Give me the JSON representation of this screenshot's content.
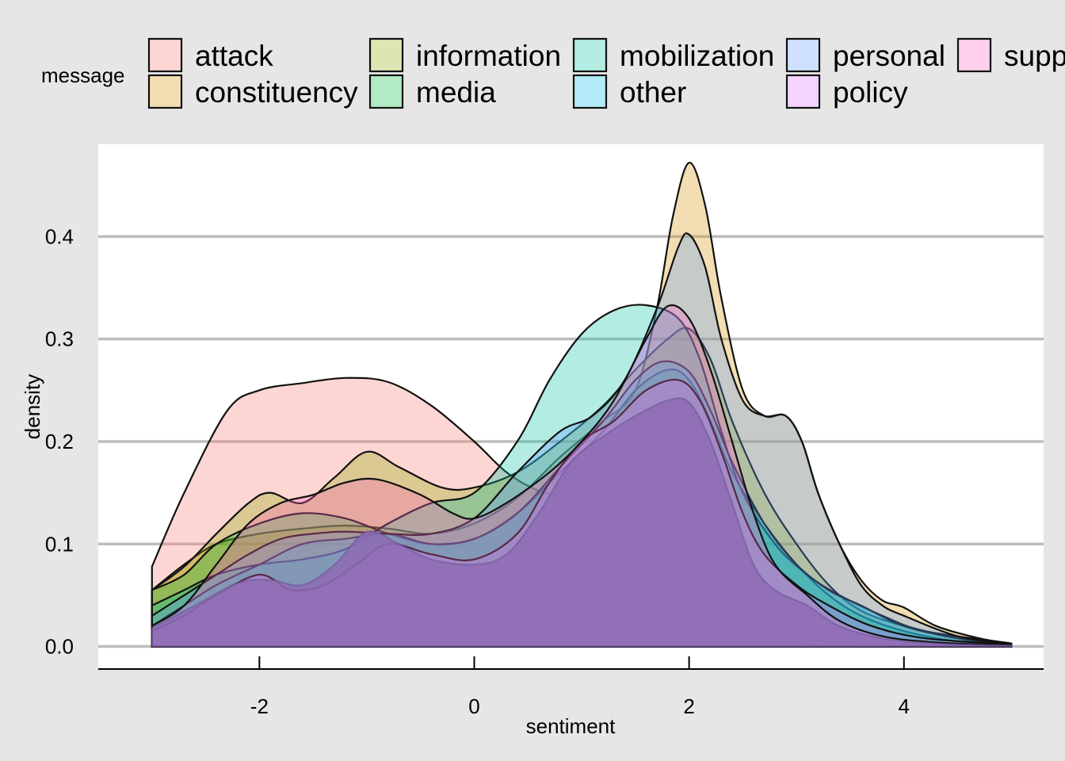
{
  "chart_data": {
    "type": "area",
    "title": "",
    "xlabel": "sentiment",
    "ylabel": "density",
    "xlim": [
      -3.5,
      5.3
    ],
    "ylim": [
      -0.022,
      0.49
    ],
    "x_ticks": [
      -2,
      0,
      2,
      4
    ],
    "x_tick_labels": [
      "-2",
      "0",
      "2",
      "4"
    ],
    "y_ticks": [
      0.0,
      0.1,
      0.2,
      0.3,
      0.4
    ],
    "y_tick_labels": [
      "0.0",
      "0.1",
      "0.2",
      "0.3",
      "0.4"
    ],
    "grid": "horizontal",
    "legend": {
      "title": "message",
      "placement": "top",
      "columns": [
        [
          "attack",
          "constituency"
        ],
        [
          "information",
          "media"
        ],
        [
          "mobilization",
          "other"
        ],
        [
          "personal",
          "policy"
        ],
        [
          "supp"
        ]
      ]
    },
    "series": [
      {
        "name": "attack",
        "color": "#F8766D",
        "points": [
          [
            -3,
            0.078
          ],
          [
            -2.7,
            0.15
          ],
          [
            -2.3,
            0.23
          ],
          [
            -2,
            0.25
          ],
          [
            -1.6,
            0.257
          ],
          [
            -1.2,
            0.262
          ],
          [
            -0.8,
            0.258
          ],
          [
            -0.4,
            0.235
          ],
          [
            0,
            0.2
          ],
          [
            0.3,
            0.17
          ],
          [
            0.6,
            0.152
          ],
          [
            1,
            0.14
          ],
          [
            1.3,
            0.125
          ],
          [
            1.6,
            0.1
          ],
          [
            2,
            0.068
          ],
          [
            2.3,
            0.042
          ],
          [
            2.6,
            0.02
          ],
          [
            3,
            0.008
          ],
          [
            3.5,
            0.004
          ],
          [
            4,
            0.002
          ],
          [
            5,
            0.001
          ]
        ]
      },
      {
        "name": "constituency",
        "color": "#D39200",
        "points": [
          [
            -3,
            0.055
          ],
          [
            -2.7,
            0.08
          ],
          [
            -2.4,
            0.1
          ],
          [
            -2,
            0.11
          ],
          [
            -1.6,
            0.115
          ],
          [
            -1.2,
            0.118
          ],
          [
            -0.8,
            0.115
          ],
          [
            -0.4,
            0.11
          ],
          [
            0,
            0.12
          ],
          [
            0.4,
            0.145
          ],
          [
            0.8,
            0.185
          ],
          [
            1.2,
            0.22
          ],
          [
            1.5,
            0.25
          ],
          [
            1.7,
            0.33
          ],
          [
            1.85,
            0.42
          ],
          [
            2,
            0.472
          ],
          [
            2.15,
            0.43
          ],
          [
            2.3,
            0.34
          ],
          [
            2.5,
            0.25
          ],
          [
            2.7,
            0.225
          ],
          [
            2.9,
            0.225
          ],
          [
            3.05,
            0.2
          ],
          [
            3.2,
            0.15
          ],
          [
            3.4,
            0.1
          ],
          [
            3.6,
            0.065
          ],
          [
            3.8,
            0.045
          ],
          [
            4,
            0.038
          ],
          [
            4.3,
            0.02
          ],
          [
            4.7,
            0.008
          ],
          [
            5,
            0.003
          ]
        ]
      },
      {
        "name": "information",
        "color": "#93AA00",
        "points": [
          [
            -3,
            0.055
          ],
          [
            -2.7,
            0.078
          ],
          [
            -2.4,
            0.11
          ],
          [
            -2.1,
            0.14
          ],
          [
            -1.9,
            0.15
          ],
          [
            -1.6,
            0.14
          ],
          [
            -1.3,
            0.165
          ],
          [
            -1,
            0.19
          ],
          [
            -0.7,
            0.175
          ],
          [
            -0.3,
            0.155
          ],
          [
            0,
            0.155
          ],
          [
            0.4,
            0.17
          ],
          [
            0.8,
            0.2
          ],
          [
            1.2,
            0.235
          ],
          [
            1.5,
            0.27
          ],
          [
            1.8,
            0.3
          ],
          [
            2,
            0.31
          ],
          [
            2.2,
            0.28
          ],
          [
            2.4,
            0.22
          ],
          [
            2.7,
            0.15
          ],
          [
            3,
            0.1
          ],
          [
            3.3,
            0.06
          ],
          [
            3.6,
            0.035
          ],
          [
            4,
            0.02
          ],
          [
            4.5,
            0.008
          ],
          [
            5,
            0.002
          ]
        ]
      },
      {
        "name": "media",
        "color": "#00BA38",
        "points": [
          [
            -3,
            0.055
          ],
          [
            -2.7,
            0.07
          ],
          [
            -2.4,
            0.1
          ],
          [
            -2,
            0.12
          ],
          [
            -1.6,
            0.13
          ],
          [
            -1.2,
            0.125
          ],
          [
            -0.8,
            0.11
          ],
          [
            -0.4,
            0.1
          ],
          [
            0,
            0.105
          ],
          [
            0.4,
            0.13
          ],
          [
            0.8,
            0.17
          ],
          [
            1.2,
            0.21
          ],
          [
            1.5,
            0.25
          ],
          [
            1.8,
            0.27
          ],
          [
            2,
            0.26
          ],
          [
            2.2,
            0.22
          ],
          [
            2.4,
            0.17
          ],
          [
            2.7,
            0.12
          ],
          [
            3,
            0.08
          ],
          [
            3.3,
            0.05
          ],
          [
            3.6,
            0.03
          ],
          [
            4,
            0.015
          ],
          [
            4.5,
            0.005
          ],
          [
            5,
            0.002
          ]
        ]
      },
      {
        "name": "mobilization",
        "color": "#00C19F",
        "points": [
          [
            -3,
            0.04
          ],
          [
            -2.7,
            0.055
          ],
          [
            -2.4,
            0.07
          ],
          [
            -2,
            0.08
          ],
          [
            -1.6,
            0.085
          ],
          [
            -1.2,
            0.095
          ],
          [
            -0.8,
            0.12
          ],
          [
            -0.4,
            0.14
          ],
          [
            0,
            0.15
          ],
          [
            0.4,
            0.2
          ],
          [
            0.7,
            0.26
          ],
          [
            1,
            0.305
          ],
          [
            1.3,
            0.328
          ],
          [
            1.6,
            0.333
          ],
          [
            1.9,
            0.32
          ],
          [
            2.1,
            0.28
          ],
          [
            2.3,
            0.21
          ],
          [
            2.5,
            0.15
          ],
          [
            2.8,
            0.1
          ],
          [
            3.1,
            0.07
          ],
          [
            3.4,
            0.05
          ],
          [
            3.8,
            0.03
          ],
          [
            4.2,
            0.015
          ],
          [
            5,
            0.003
          ]
        ]
      },
      {
        "name": "other",
        "color": "#00B9E3",
        "points": [
          [
            -3,
            0.02
          ],
          [
            -2.7,
            0.04
          ],
          [
            -2.4,
            0.06
          ],
          [
            -2,
            0.08
          ],
          [
            -1.6,
            0.1
          ],
          [
            -1.2,
            0.105
          ],
          [
            -0.8,
            0.11
          ],
          [
            -0.4,
            0.1
          ],
          [
            0,
            0.105
          ],
          [
            0.4,
            0.13
          ],
          [
            0.8,
            0.175
          ],
          [
            1.2,
            0.22
          ],
          [
            1.5,
            0.26
          ],
          [
            1.75,
            0.278
          ],
          [
            2,
            0.268
          ],
          [
            2.2,
            0.23
          ],
          [
            2.4,
            0.18
          ],
          [
            2.7,
            0.12
          ],
          [
            3,
            0.08
          ],
          [
            3.3,
            0.055
          ],
          [
            3.6,
            0.04
          ],
          [
            4,
            0.02
          ],
          [
            4.5,
            0.008
          ],
          [
            5,
            0.002
          ]
        ]
      },
      {
        "name": "personal",
        "color": "#619CFF",
        "points": [
          [
            -3,
            0.03
          ],
          [
            -2.7,
            0.05
          ],
          [
            -2.4,
            0.07
          ],
          [
            -2.1,
            0.09
          ],
          [
            -1.8,
            0.105
          ],
          [
            -1.5,
            0.11
          ],
          [
            -1.2,
            0.112
          ],
          [
            -0.8,
            0.11
          ],
          [
            -0.4,
            0.11
          ],
          [
            0,
            0.125
          ],
          [
            0.4,
            0.17
          ],
          [
            0.8,
            0.21
          ],
          [
            1.1,
            0.225
          ],
          [
            1.4,
            0.26
          ],
          [
            1.7,
            0.33
          ],
          [
            1.9,
            0.39
          ],
          [
            2,
            0.402
          ],
          [
            2.15,
            0.37
          ],
          [
            2.3,
            0.3
          ],
          [
            2.5,
            0.24
          ],
          [
            2.7,
            0.225
          ],
          [
            2.9,
            0.225
          ],
          [
            3.05,
            0.2
          ],
          [
            3.2,
            0.15
          ],
          [
            3.4,
            0.1
          ],
          [
            3.6,
            0.06
          ],
          [
            3.8,
            0.04
          ],
          [
            4,
            0.03
          ],
          [
            4.5,
            0.01
          ],
          [
            5,
            0.002
          ]
        ]
      },
      {
        "name": "policy",
        "color": "#DB72FB",
        "points": [
          [
            -3,
            0.015
          ],
          [
            -2.7,
            0.03
          ],
          [
            -2.4,
            0.05
          ],
          [
            -2,
            0.07
          ],
          [
            -1.7,
            0.055
          ],
          [
            -1.4,
            0.06
          ],
          [
            -1.1,
            0.08
          ],
          [
            -0.8,
            0.1
          ],
          [
            -0.4,
            0.09
          ],
          [
            0,
            0.085
          ],
          [
            0.4,
            0.11
          ],
          [
            0.7,
            0.16
          ],
          [
            1,
            0.2
          ],
          [
            1.3,
            0.22
          ],
          [
            1.6,
            0.25
          ],
          [
            1.9,
            0.26
          ],
          [
            2.1,
            0.24
          ],
          [
            2.3,
            0.19
          ],
          [
            2.5,
            0.13
          ],
          [
            2.7,
            0.09
          ],
          [
            3,
            0.06
          ],
          [
            3.3,
            0.04
          ],
          [
            3.7,
            0.02
          ],
          [
            4.2,
            0.008
          ],
          [
            5,
            0.002
          ]
        ]
      },
      {
        "name": "supp",
        "color": "#FF61C3",
        "points": [
          [
            -3,
            0.02
          ],
          [
            -2.7,
            0.04
          ],
          [
            -2.4,
            0.08
          ],
          [
            -2.1,
            0.12
          ],
          [
            -1.8,
            0.14
          ],
          [
            -1.5,
            0.148
          ],
          [
            -1.2,
            0.16
          ],
          [
            -0.9,
            0.163
          ],
          [
            -0.5,
            0.148
          ],
          [
            -0.2,
            0.13
          ],
          [
            0,
            0.125
          ],
          [
            0.3,
            0.14
          ],
          [
            0.7,
            0.17
          ],
          [
            1,
            0.2
          ],
          [
            1.3,
            0.24
          ],
          [
            1.6,
            0.3
          ],
          [
            1.8,
            0.332
          ],
          [
            2,
            0.32
          ],
          [
            2.2,
            0.27
          ],
          [
            2.4,
            0.2
          ],
          [
            2.6,
            0.13
          ],
          [
            2.8,
            0.08
          ],
          [
            3.1,
            0.05
          ],
          [
            3.4,
            0.025
          ],
          [
            3.8,
            0.01
          ],
          [
            4.3,
            0.004
          ],
          [
            5,
            0.001
          ]
        ]
      },
      {
        "name": "",
        "color": "#8E6BB5",
        "points": [
          [
            -3,
            0.018
          ],
          [
            -2.6,
            0.04
          ],
          [
            -2.2,
            0.062
          ],
          [
            -1.9,
            0.065
          ],
          [
            -1.6,
            0.06
          ],
          [
            -1.3,
            0.08
          ],
          [
            -1,
            0.112
          ],
          [
            -0.7,
            0.1
          ],
          [
            -0.4,
            0.085
          ],
          [
            0,
            0.08
          ],
          [
            0.3,
            0.09
          ],
          [
            0.6,
            0.13
          ],
          [
            0.9,
            0.18
          ],
          [
            1.2,
            0.205
          ],
          [
            1.5,
            0.225
          ],
          [
            1.8,
            0.24
          ],
          [
            2,
            0.238
          ],
          [
            2.2,
            0.2
          ],
          [
            2.4,
            0.14
          ],
          [
            2.6,
            0.08
          ],
          [
            2.8,
            0.055
          ],
          [
            3.1,
            0.04
          ],
          [
            3.4,
            0.02
          ],
          [
            3.8,
            0.008
          ],
          [
            4.3,
            0.003
          ],
          [
            5,
            0.001
          ]
        ]
      }
    ]
  }
}
